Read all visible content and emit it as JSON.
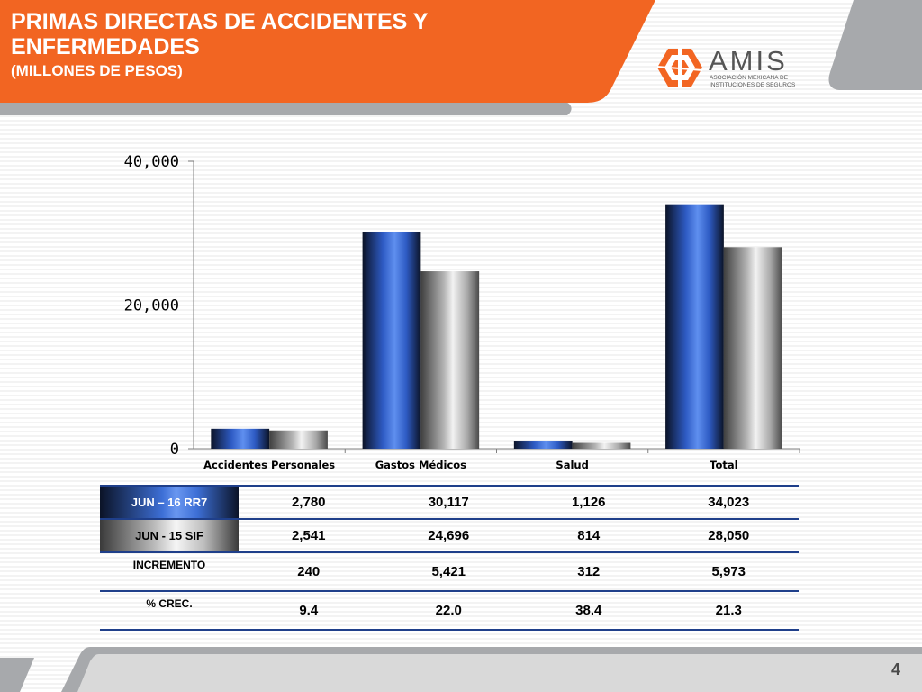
{
  "header": {
    "title_line1": "PRIMAS DIRECTAS DE ACCIDENTES Y",
    "title_line2": "ENFERMEDADES",
    "subtitle": "(MILLONES DE PESOS)"
  },
  "logo": {
    "name": "AMIS",
    "subtitle_line1": "ASOCIACIÓN MEXICANA DE",
    "subtitle_line2": "INSTITUCIONES DE SEGUROS"
  },
  "colors": {
    "header_orange": "#f26522",
    "series_2016": "#3d6fd6",
    "series_2015": "#a0a0a0",
    "table_rule": "#1f3f8a",
    "footer_gray": "#a7a9ac"
  },
  "chart_data": {
    "type": "bar",
    "categories": [
      "Accidentes Personales",
      "Gastos Médicos",
      "Salud",
      "Total"
    ],
    "series": [
      {
        "name": "JUN – 16 RR7",
        "values": [
          2780,
          30117,
          1126,
          34023
        ]
      },
      {
        "name": "JUN -  15 SIF",
        "values": [
          2541,
          24696,
          814,
          28050
        ]
      }
    ],
    "ylim": [
      0,
      40000
    ],
    "yticks": [
      0,
      20000,
      40000
    ],
    "ytick_labels": [
      "0",
      "20,000",
      "40,000"
    ],
    "grid": false,
    "legend": "none"
  },
  "table": {
    "rows": [
      {
        "label": "JUN – 16 RR7",
        "values": [
          "2,780",
          "30,117",
          "1,126",
          "34,023"
        ]
      },
      {
        "label": "JUN -  15 SIF",
        "values": [
          "2,541",
          "24,696",
          "814",
          "28,050"
        ]
      },
      {
        "label": "INCREMENTO",
        "values": [
          "240",
          "5,421",
          "312",
          "5,973"
        ]
      },
      {
        "label": "% CREC.",
        "values": [
          "9.4",
          "22.0",
          "38.4",
          "21.3"
        ]
      }
    ]
  },
  "footer": {
    "page_number": "4"
  }
}
